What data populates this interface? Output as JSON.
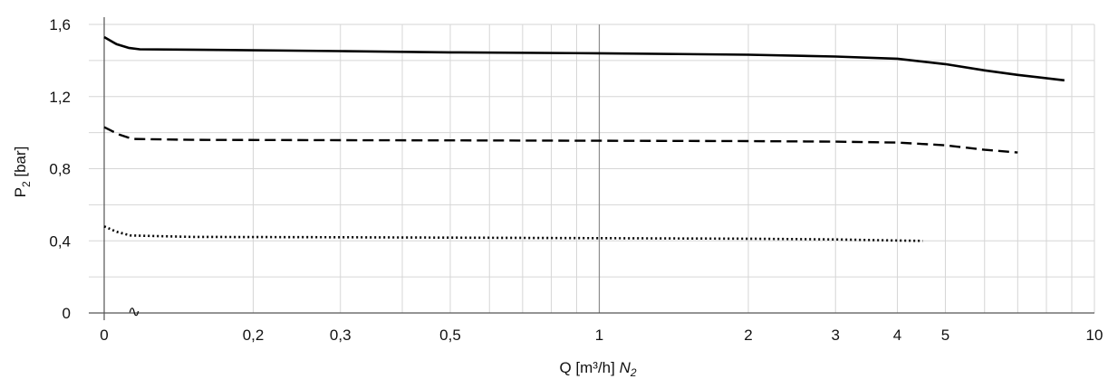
{
  "chart_data": {
    "type": "line",
    "title": "",
    "xlabel": "Q [m³/h] N₂",
    "xlabel_parts": {
      "text": "Q [m³/h] ",
      "gas": "N",
      "gas_sub": "2"
    },
    "ylabel": "P₂ [bar]",
    "ylabel_parts": {
      "text": "P",
      "sub": "2",
      "unit": " [bar]"
    },
    "x_scale": "log",
    "xlim": [
      0.1,
      10
    ],
    "ylim": [
      0,
      1.6
    ],
    "grid": true,
    "legend": "none",
    "x_ticks": [
      {
        "value": 0.1,
        "label": "0"
      },
      {
        "value": 0.2,
        "label": "0,2"
      },
      {
        "value": 0.3,
        "label": "0,3"
      },
      {
        "value": 0.5,
        "label": "0,5"
      },
      {
        "value": 1,
        "label": "1"
      },
      {
        "value": 2,
        "label": "2"
      },
      {
        "value": 3,
        "label": "3"
      },
      {
        "value": 4,
        "label": "4"
      },
      {
        "value": 5,
        "label": "5"
      },
      {
        "value": 10,
        "label": "10"
      }
    ],
    "y_ticks": [
      {
        "value": 0,
        "label": "0"
      },
      {
        "value": 0.4,
        "label": "0,4"
      },
      {
        "value": 0.8,
        "label": "0,8"
      },
      {
        "value": 1.2,
        "label": "1,2"
      },
      {
        "value": 1.6,
        "label": "1,6"
      }
    ],
    "axis_break_symbol": "∿",
    "series": [
      {
        "style": "solid",
        "color": "#000000",
        "points": [
          [
            0.1,
            1.53
          ],
          [
            0.106,
            1.49
          ],
          [
            0.112,
            1.47
          ],
          [
            0.118,
            1.462
          ],
          [
            0.15,
            1.46
          ],
          [
            0.3,
            1.452
          ],
          [
            0.5,
            1.445
          ],
          [
            1,
            1.44
          ],
          [
            2,
            1.432
          ],
          [
            3,
            1.422
          ],
          [
            4,
            1.41
          ],
          [
            5,
            1.38
          ],
          [
            6,
            1.345
          ],
          [
            7,
            1.32
          ],
          [
            8.7,
            1.29
          ]
        ]
      },
      {
        "style": "dashed",
        "color": "#000000",
        "points": [
          [
            0.1,
            1.03
          ],
          [
            0.107,
            0.99
          ],
          [
            0.114,
            0.965
          ],
          [
            0.15,
            0.96
          ],
          [
            0.3,
            0.958
          ],
          [
            0.5,
            0.957
          ],
          [
            1,
            0.955
          ],
          [
            2,
            0.953
          ],
          [
            3,
            0.95
          ],
          [
            4,
            0.945
          ],
          [
            5,
            0.93
          ],
          [
            6,
            0.905
          ],
          [
            7,
            0.89
          ]
        ]
      },
      {
        "style": "dotted",
        "color": "#000000",
        "points": [
          [
            0.1,
            0.48
          ],
          [
            0.106,
            0.45
          ],
          [
            0.113,
            0.43
          ],
          [
            0.15,
            0.422
          ],
          [
            0.3,
            0.42
          ],
          [
            0.5,
            0.418
          ],
          [
            1,
            0.415
          ],
          [
            2,
            0.412
          ],
          [
            3,
            0.408
          ],
          [
            4,
            0.402
          ],
          [
            4.5,
            0.4
          ]
        ]
      }
    ]
  }
}
